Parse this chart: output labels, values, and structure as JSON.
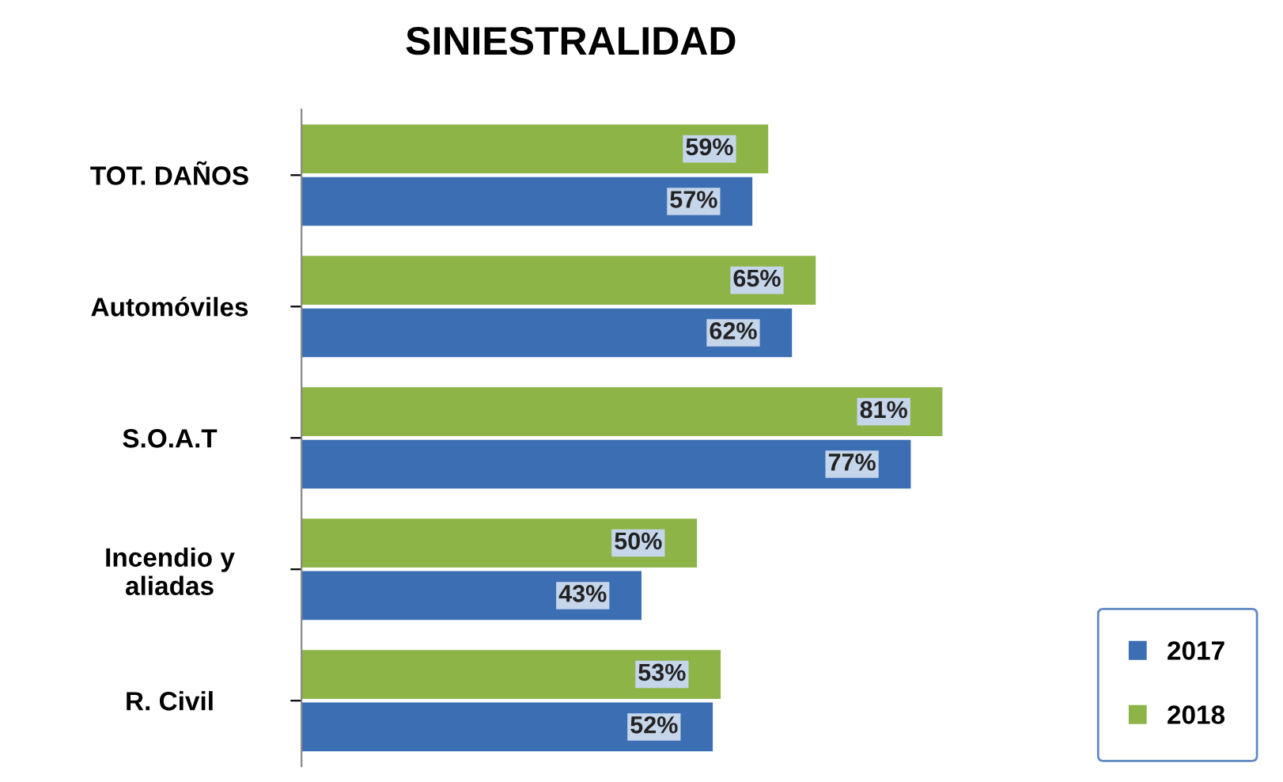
{
  "chart_data": {
    "type": "bar",
    "orientation": "horizontal",
    "title": "SINIESTRALIDAD",
    "categories": [
      "TOT. DAÑOS",
      "Automóviles",
      "S.O.A.T",
      "Incendio y\naliadas",
      "R. Civil"
    ],
    "series": [
      {
        "name": "2018",
        "color": "#8db447",
        "values": [
          59,
          65,
          81,
          50,
          53
        ],
        "value_labels": [
          "59%",
          "65%",
          "81%",
          "50%",
          "53%"
        ]
      },
      {
        "name": "2017",
        "color": "#3c6eb4",
        "values": [
          57,
          62,
          77,
          43,
          52
        ],
        "value_labels": [
          "57%",
          "62%",
          "77%",
          "43%",
          "52%"
        ]
      }
    ],
    "legend": "bottom right",
    "grid": false
  }
}
